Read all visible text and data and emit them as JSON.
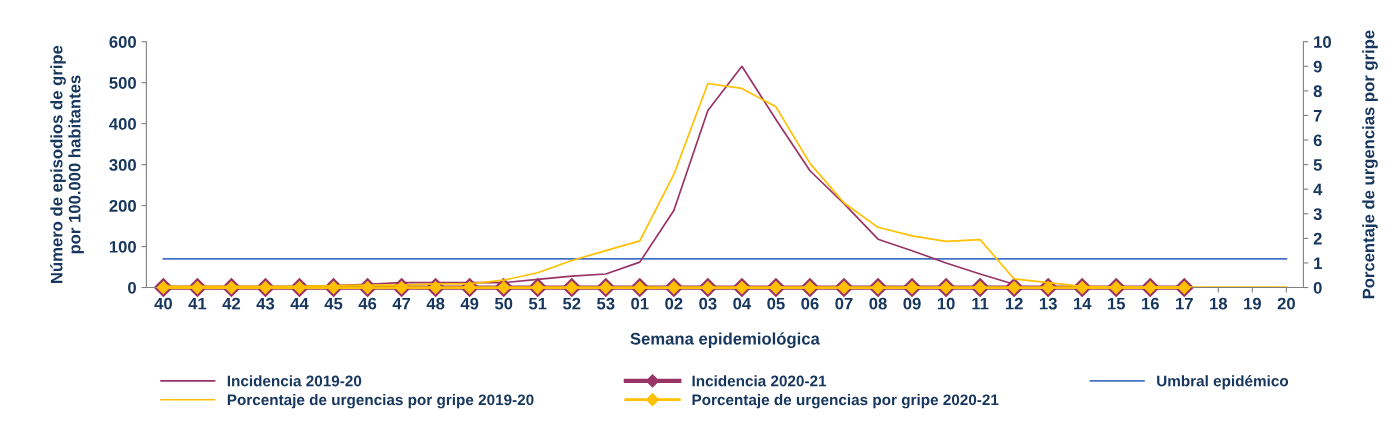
{
  "chart_data": {
    "type": "line",
    "xlabel": "Semana epidemiológica",
    "ylabel": "Número de episodios de gripe\npor 100.000 habitantes",
    "y2label": "Porcentaje de urgencias por gripe",
    "categories": [
      "40",
      "41",
      "42",
      "43",
      "44",
      "45",
      "46",
      "47",
      "48",
      "49",
      "50",
      "51",
      "52",
      "53",
      "01",
      "02",
      "03",
      "04",
      "05",
      "06",
      "07",
      "08",
      "09",
      "10",
      "11",
      "12",
      "13",
      "14",
      "15",
      "16",
      "17",
      "18",
      "19",
      "20"
    ],
    "series": [
      {
        "name": "Incidencia 2019-20",
        "color": "#993366",
        "marker": "none",
        "values": [
          0,
          0,
          1,
          1,
          2,
          5,
          8,
          12,
          12,
          12,
          12,
          20,
          28,
          33,
          62,
          188,
          432,
          540,
          410,
          285,
          205,
          118,
          90,
          60,
          33,
          8,
          null,
          null,
          null,
          null,
          null,
          null,
          null,
          null
        ]
      },
      {
        "name": "Incidencia 2020-21",
        "color": "#993366",
        "marker": "diamond",
        "values": [
          0,
          0,
          0,
          0,
          0,
          0,
          0,
          0,
          0,
          0,
          0,
          0,
          0,
          0,
          0,
          0,
          0,
          0,
          0,
          0,
          0,
          0,
          0,
          0,
          0,
          0,
          0,
          0,
          0,
          0,
          0,
          null,
          null,
          null
        ]
      },
      {
        "name": "Porcentaje de urgencias por gripe 2019-20",
        "color": "#ffc000",
        "marker": "none",
        "axis": "y2",
        "values": [
          0.05,
          0.05,
          0.05,
          0.05,
          0.05,
          0.08,
          0.1,
          0.1,
          0.15,
          0.15,
          0.3,
          0.6,
          1.1,
          1.5,
          1.9,
          4.6,
          8.3,
          8.1,
          7.35,
          5.05,
          3.45,
          2.45,
          2.1,
          1.88,
          1.95,
          0.35,
          0.2,
          0.05,
          0.02,
          0.02,
          0.02,
          0.02,
          0.02,
          0.02
        ]
      },
      {
        "name": "Porcentaje de urgencias por gripe 2020-21",
        "color": "#ffc000",
        "marker": "diamond",
        "axis": "y2",
        "values": [
          0,
          0,
          0,
          0,
          0,
          0,
          0,
          0,
          0,
          0,
          0,
          0,
          0,
          0,
          0,
          0,
          0,
          0,
          0,
          0,
          0,
          0,
          0,
          0,
          0,
          0,
          0,
          0,
          0,
          0,
          0,
          null,
          null,
          null
        ]
      }
    ],
    "ref_lines": [
      {
        "axis": "y",
        "value": 70,
        "label": "Umbral epidémico",
        "color": "#4472c4",
        "line_style": "solid"
      }
    ],
    "ylim": [
      0,
      600
    ],
    "yticks": [
      0,
      100,
      200,
      300,
      400,
      500,
      600
    ],
    "y2lim": [
      0,
      10
    ],
    "y2ticks": [
      0,
      1,
      2,
      3,
      4,
      5,
      6,
      7,
      8,
      9,
      10
    ],
    "grid": false,
    "legend": "bottom"
  }
}
